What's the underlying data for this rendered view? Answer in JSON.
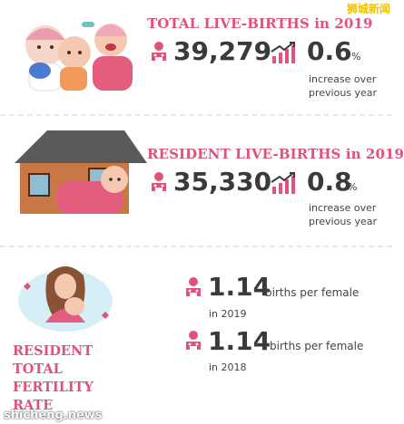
{
  "badge": "狮城新闻",
  "watermark": "shicheng.news",
  "section1": {
    "title": "TOTAL LIVE-BIRTHS in 2019",
    "value": "39,279",
    "pct": "0.6",
    "pct_unit": "%",
    "pct_note_line1": "increase over",
    "pct_note_line2": "previous year"
  },
  "section2": {
    "title": "RESIDENT LIVE-BIRTHS in 2019",
    "value": "35,330",
    "pct": "0.8",
    "pct_unit": "%",
    "pct_note_line1": "increase over",
    "pct_note_line2": "previous year"
  },
  "section3": {
    "label_line1": "RESIDENT",
    "label_line2": "TOTAL",
    "label_line3": "FERTILITY",
    "label_line4": "RATE",
    "rows": [
      {
        "value": "1.14",
        "unit": "births per female",
        "year": "in 2019"
      },
      {
        "value": "1.14",
        "unit": "births per female",
        "year": "in 2018"
      }
    ]
  },
  "colors": {
    "accent": "#e0527a",
    "text": "#3a3a3a"
  },
  "icons": [
    "babies-illustration",
    "house-baby-illustration",
    "mother-baby-illustration",
    "baby-icon",
    "growth-chart-icon"
  ]
}
